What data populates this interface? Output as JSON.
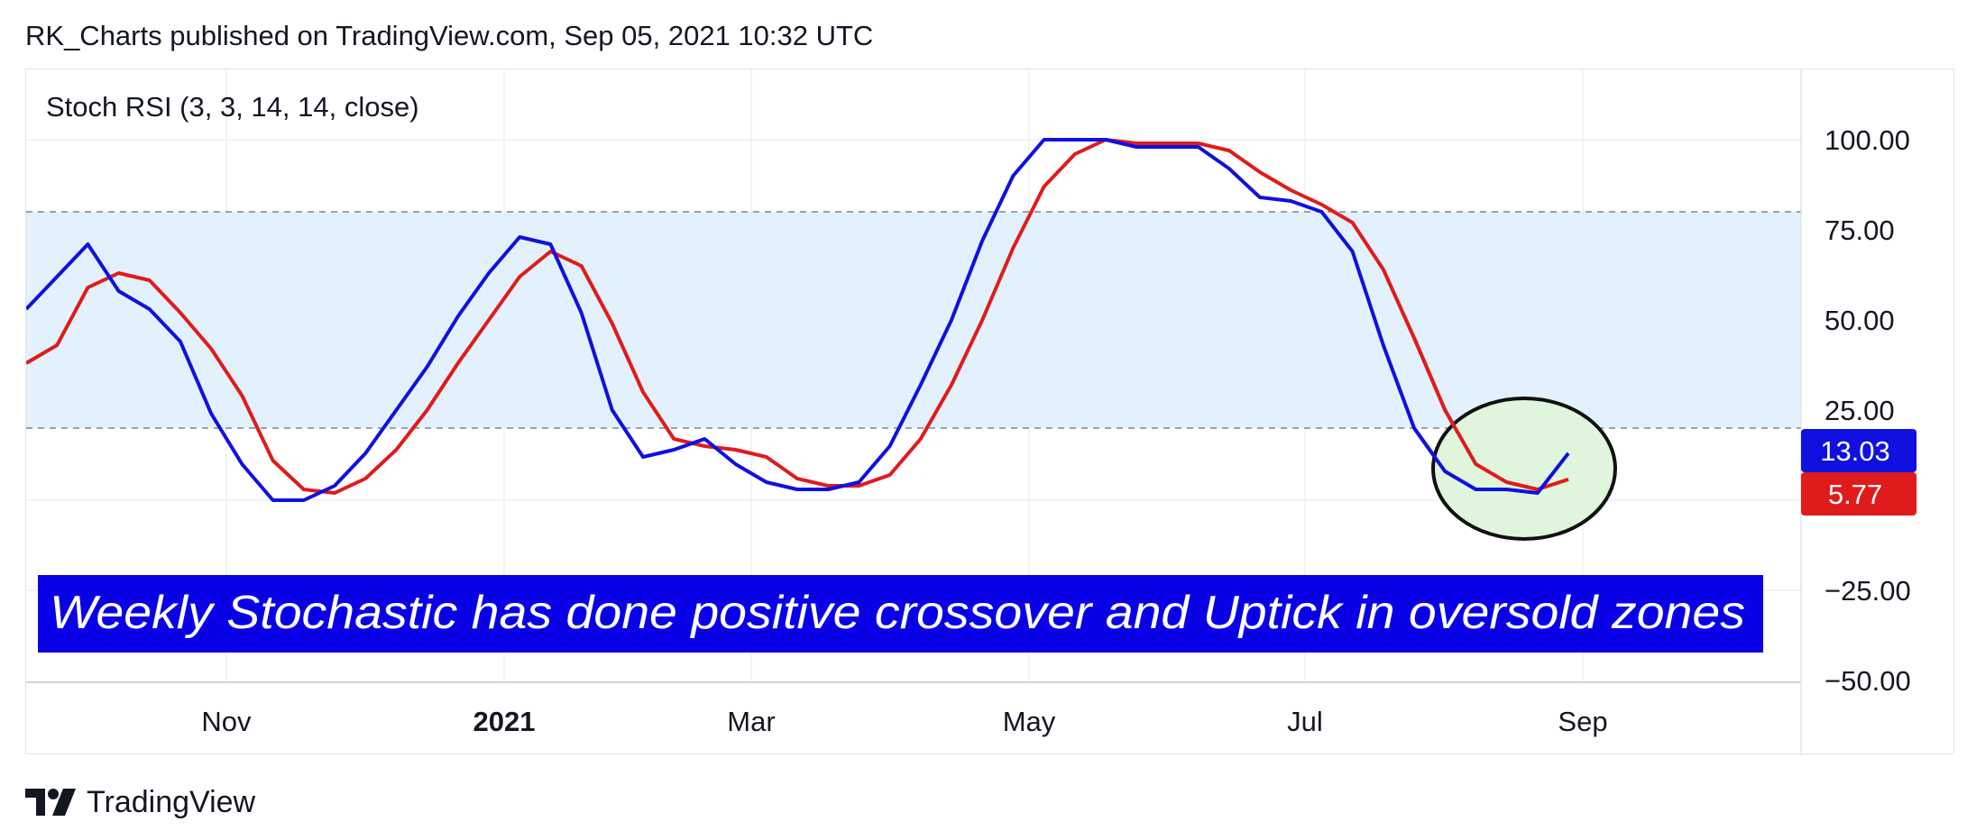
{
  "header": {
    "text": "RK_Charts published on TradingView.com, Sep 05, 2021 10:32 UTC"
  },
  "footer": {
    "brand": "TradingView",
    "logo_icon": "tradingview-logo-icon"
  },
  "colors": {
    "k_line": "#1010e0",
    "d_line": "#e01b1b",
    "band_fill": "#e3f1fc",
    "annotation_bg": "#0a00e6",
    "annotation_text": "#ffffff",
    "highlight_fill": "#dff5dc",
    "highlight_stroke": "#111111",
    "grid": "#eef0f3",
    "dashed": "#7d8593"
  },
  "chart_data": {
    "type": "line",
    "title": "Stoch RSI (3, 3, 14, 14, close)",
    "x_ticks": [
      "Nov",
      "2021",
      "Mar",
      "May",
      "Jul",
      "Sep"
    ],
    "x_ticks_bold": [
      false,
      true,
      false,
      false,
      false,
      false
    ],
    "y_ticks": [
      "100.00",
      "75.00",
      "50.00",
      "25.00",
      "−25.00",
      "−50.00"
    ],
    "y_tick_values": [
      100,
      75,
      50,
      25,
      -25,
      -50
    ],
    "ylim": [
      -50,
      100
    ],
    "band": {
      "upper": 80,
      "lower": 20
    },
    "series": [
      {
        "key": "k",
        "last_value_label": "13.03",
        "values": [
          53,
          62,
          71,
          58,
          53,
          44,
          24,
          10,
          0,
          0,
          4,
          13,
          25,
          37,
          51,
          63,
          73,
          71,
          52,
          25,
          12,
          14,
          17,
          10,
          5,
          3,
          3,
          5,
          15,
          32,
          50,
          72,
          90,
          100,
          100,
          100,
          98,
          98,
          98,
          92,
          84,
          83,
          80,
          69,
          43,
          20,
          8,
          3,
          3,
          2,
          13.03
        ]
      },
      {
        "key": "d",
        "last_value_label": "5.77",
        "values": [
          38,
          43,
          59,
          63,
          61,
          52,
          42,
          29,
          11,
          3,
          2,
          6,
          14,
          25,
          38,
          50,
          62,
          69,
          65,
          49,
          30,
          17,
          15,
          14,
          12,
          6,
          4,
          4,
          7,
          17,
          32,
          50,
          70,
          87,
          96,
          100,
          99,
          99,
          99,
          97,
          91,
          86,
          82,
          77,
          64,
          45,
          25,
          10,
          5,
          3,
          5.77
        ]
      }
    ],
    "annotation": "Weekly Stochastic has done positive crossover and Uptick in oversold zones",
    "highlight": "oversold-crossover-circle",
    "grid": true
  }
}
